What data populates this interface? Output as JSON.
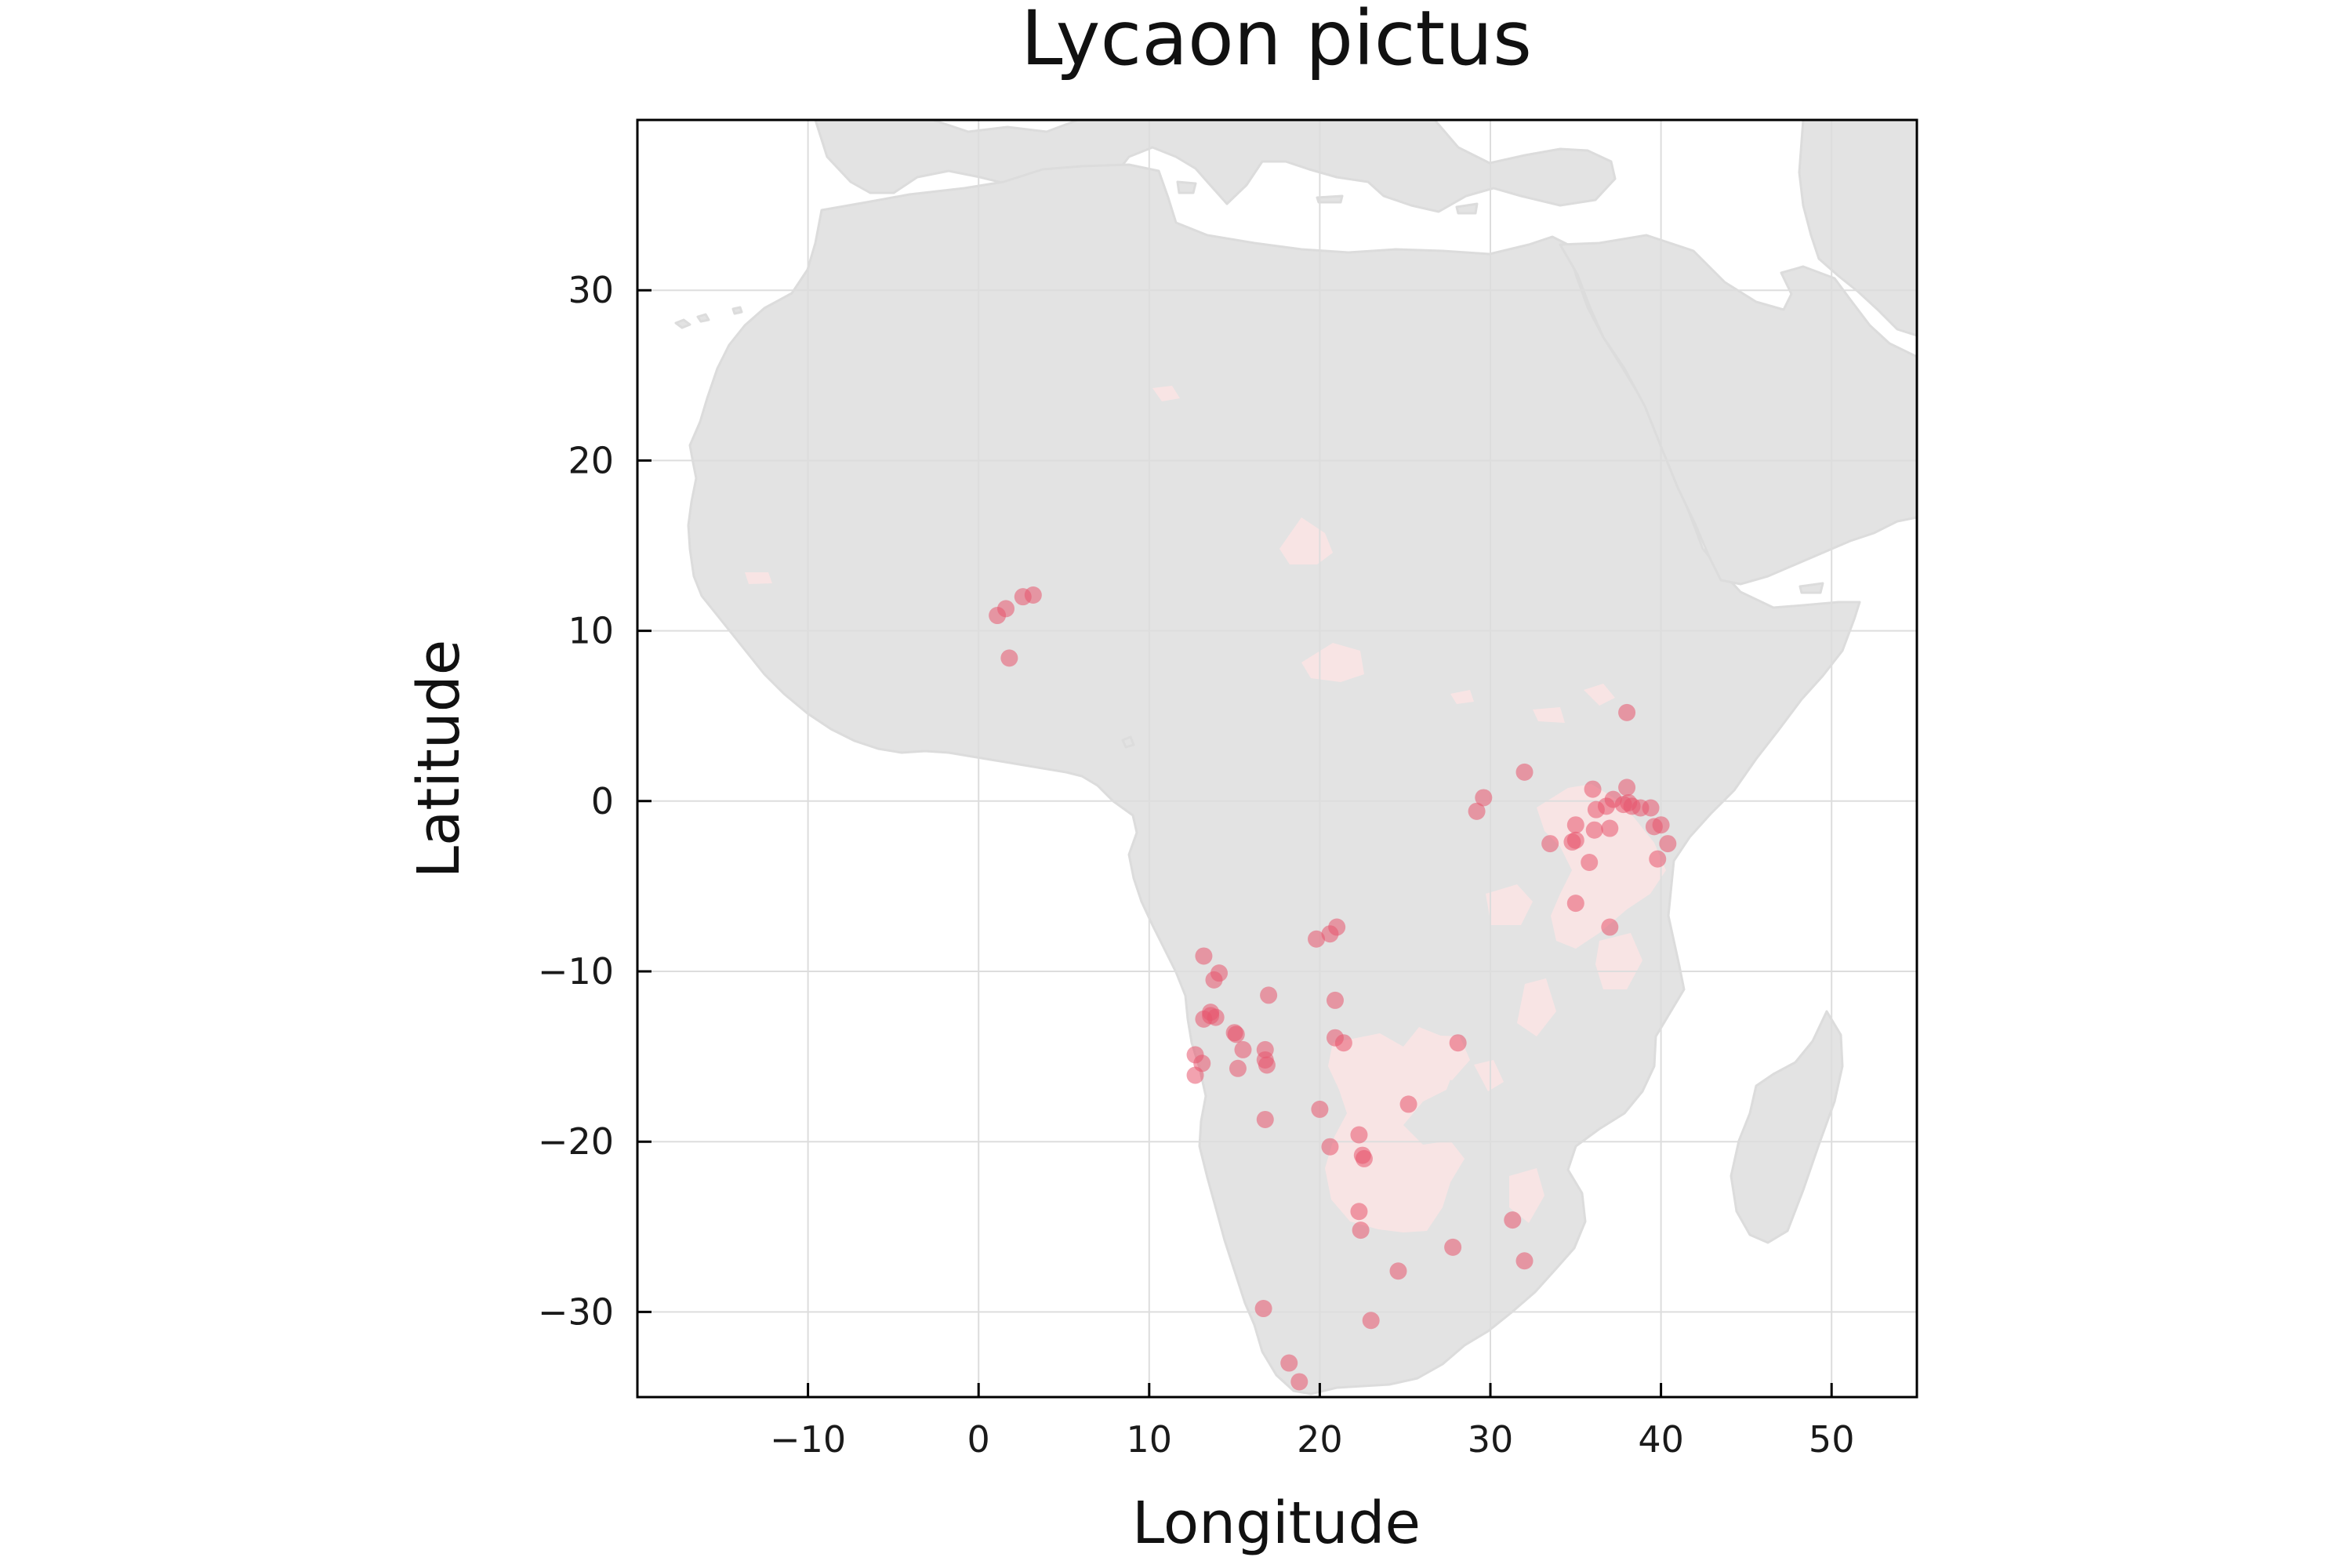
{
  "chart_data": {
    "type": "scatter",
    "title": "Lycaon pictus",
    "xlabel": "Longitude",
    "ylabel": "Latitude",
    "xlim": [
      -20,
      55
    ],
    "ylim": [
      -35,
      40
    ],
    "xticks": [
      -10,
      0,
      10,
      20,
      30,
      40,
      50
    ],
    "yticks": [
      -30,
      -20,
      -10,
      0,
      10,
      20,
      30
    ],
    "xtick_labels": [
      "−10",
      "0",
      "10",
      "20",
      "30",
      "40",
      "50"
    ],
    "ytick_labels": [
      "−30",
      "−20",
      "−10",
      "0",
      "10",
      "20",
      "30"
    ],
    "grid": true,
    "legend": "none",
    "basemap": "Africa, Mediterranean and Arabian Peninsula land masses in light grey",
    "colors": {
      "land": "#e3e3e3",
      "range": "#f8e4e4",
      "points": "#e8556d",
      "grid": "#dddddd",
      "frame": "#000000"
    },
    "series": [
      {
        "points": [
          [
            1.1,
            10.9
          ],
          [
            1.6,
            11.3
          ],
          [
            2.6,
            12.0
          ],
          [
            3.2,
            12.1
          ],
          [
            1.8,
            8.4
          ],
          [
            38.0,
            5.2
          ],
          [
            32.0,
            1.7
          ],
          [
            29.6,
            0.2
          ],
          [
            29.2,
            -0.6
          ],
          [
            36.0,
            0.7
          ],
          [
            38.0,
            0.8
          ],
          [
            37.2,
            0.1
          ],
          [
            36.8,
            -0.3
          ],
          [
            36.2,
            -0.5
          ],
          [
            37.8,
            -0.2
          ],
          [
            38.3,
            -0.3
          ],
          [
            38.1,
            -0.1
          ],
          [
            38.8,
            -0.4
          ],
          [
            39.4,
            -0.4
          ],
          [
            35.0,
            -1.4
          ],
          [
            36.1,
            -1.7
          ],
          [
            37.0,
            -1.6
          ],
          [
            39.6,
            -1.5
          ],
          [
            40.0,
            -1.4
          ],
          [
            33.5,
            -2.5
          ],
          [
            34.8,
            -2.4
          ],
          [
            35.0,
            -2.3
          ],
          [
            40.4,
            -2.5
          ],
          [
            39.8,
            -3.4
          ],
          [
            35.8,
            -3.6
          ],
          [
            35.0,
            -6.0
          ],
          [
            37.0,
            -7.4
          ],
          [
            21.0,
            -7.4
          ],
          [
            20.6,
            -7.8
          ],
          [
            19.8,
            -8.1
          ],
          [
            13.2,
            -9.1
          ],
          [
            14.1,
            -10.1
          ],
          [
            13.8,
            -10.5
          ],
          [
            17.0,
            -11.4
          ],
          [
            20.9,
            -11.7
          ],
          [
            13.6,
            -12.4
          ],
          [
            13.2,
            -12.8
          ],
          [
            13.6,
            -12.6
          ],
          [
            13.9,
            -12.7
          ],
          [
            15.0,
            -13.6
          ],
          [
            15.1,
            -13.7
          ],
          [
            20.9,
            -13.9
          ],
          [
            21.4,
            -14.2
          ],
          [
            28.1,
            -14.2
          ],
          [
            15.5,
            -14.6
          ],
          [
            16.8,
            -14.6
          ],
          [
            12.7,
            -14.9
          ],
          [
            16.8,
            -15.2
          ],
          [
            13.1,
            -15.4
          ],
          [
            16.9,
            -15.5
          ],
          [
            15.2,
            -15.7
          ],
          [
            12.7,
            -16.1
          ],
          [
            25.2,
            -17.8
          ],
          [
            20.0,
            -18.1
          ],
          [
            16.8,
            -18.7
          ],
          [
            22.3,
            -19.6
          ],
          [
            20.6,
            -20.3
          ],
          [
            22.5,
            -20.8
          ],
          [
            22.6,
            -21.0
          ],
          [
            22.3,
            -24.1
          ],
          [
            31.3,
            -24.6
          ],
          [
            22.4,
            -25.2
          ],
          [
            27.8,
            -26.2
          ],
          [
            32.0,
            -27.0
          ],
          [
            24.6,
            -27.6
          ],
          [
            16.7,
            -29.8
          ],
          [
            23.0,
            -30.5
          ],
          [
            18.2,
            -33.0
          ],
          [
            18.8,
            -34.1
          ]
        ]
      }
    ]
  }
}
